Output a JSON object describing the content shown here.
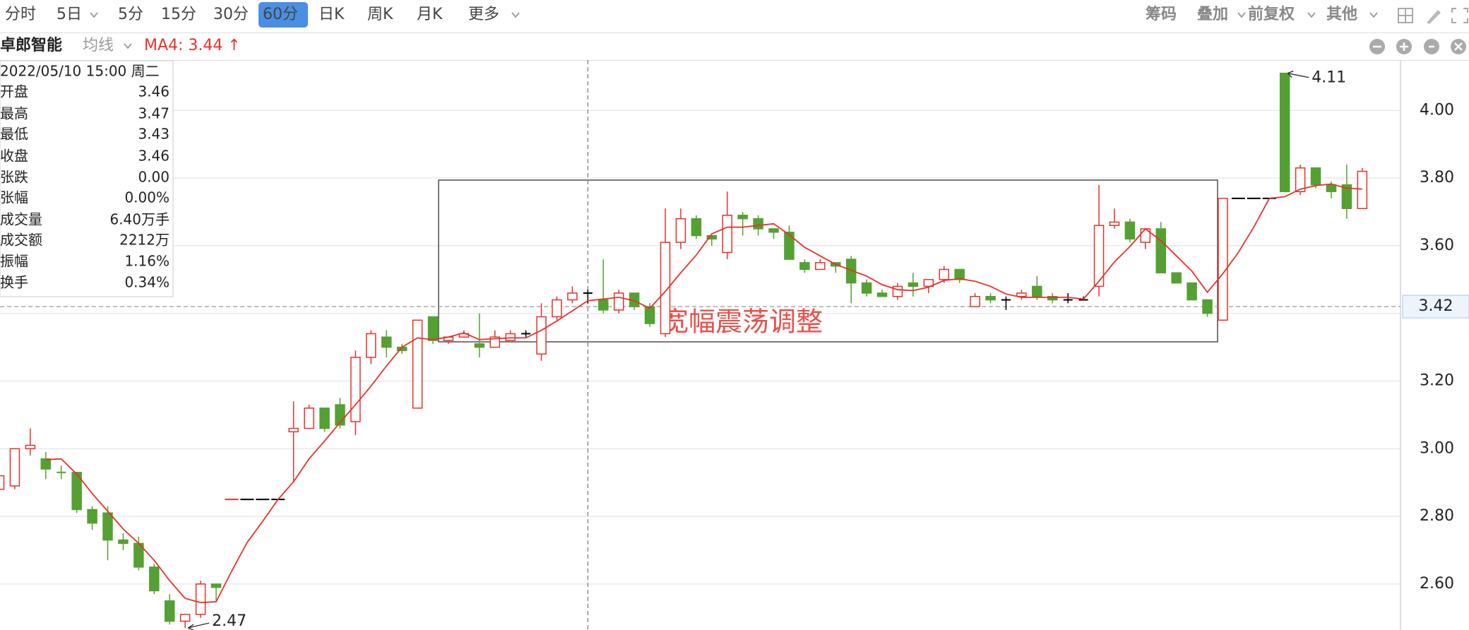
{
  "toolbar": {
    "periods": [
      "分时",
      "5日",
      "5分",
      "15分",
      "30分",
      "60分",
      "日K",
      "周K",
      "月K",
      "更多"
    ],
    "tools": [
      "筹码",
      "叠加",
      "前复权",
      "其他"
    ]
  },
  "chart_data": {
    "type": "candlestick",
    "stock_name": "卓郎智能",
    "indicator": "均线",
    "ma_label": "MA4: 3.44 ↑",
    "open": [
      2.88,
      2.89,
      3.0,
      2.97,
      2.93,
      2.93,
      2.82,
      2.81,
      2.73,
      2.72,
      2.65,
      2.55,
      2.49,
      2.51,
      2.6,
      2.85,
      2.85,
      2.85,
      2.85,
      3.05,
      3.06,
      3.12,
      3.13,
      3.08,
      3.27,
      3.33,
      3.3,
      3.12,
      3.39,
      3.32,
      3.33,
      3.31,
      3.3,
      3.32,
      3.34,
      3.28,
      3.39,
      3.44,
      3.46,
      3.44,
      3.41,
      3.46,
      3.42,
      3.34,
      3.61,
      3.68,
      3.63,
      3.58,
      3.69,
      3.68,
      3.65,
      3.64,
      3.55,
      3.53,
      3.55,
      3.56,
      3.49,
      3.46,
      3.45,
      3.49,
      3.48,
      3.5,
      3.53,
      3.42,
      3.45,
      3.44,
      3.45,
      3.48,
      3.45,
      3.44,
      3.44,
      3.48,
      3.66,
      3.67,
      3.61,
      3.65,
      3.52,
      3.49,
      3.44,
      3.38,
      3.74,
      3.74,
      3.74,
      4.11,
      3.76,
      3.83,
      3.78,
      3.78,
      3.71
    ],
    "high": [
      2.93,
      3.0,
      3.06,
      2.99,
      2.95,
      2.93,
      2.83,
      2.83,
      2.75,
      2.74,
      2.66,
      2.57,
      2.51,
      2.61,
      2.6,
      2.85,
      2.85,
      2.85,
      2.85,
      3.14,
      3.13,
      3.12,
      3.15,
      3.29,
      3.35,
      3.35,
      3.31,
      3.38,
      3.39,
      3.33,
      3.35,
      3.4,
      3.35,
      3.35,
      3.35,
      3.43,
      3.45,
      3.48,
      3.47,
      3.56,
      3.47,
      3.46,
      3.43,
      3.71,
      3.71,
      3.69,
      3.63,
      3.76,
      3.7,
      3.69,
      3.65,
      3.66,
      3.56,
      3.56,
      3.55,
      3.57,
      3.5,
      3.47,
      3.49,
      3.52,
      3.5,
      3.54,
      3.53,
      3.46,
      3.46,
      3.45,
      3.47,
      3.51,
      3.46,
      3.46,
      3.45,
      3.78,
      3.71,
      3.68,
      3.65,
      3.67,
      3.52,
      3.49,
      3.44,
      3.74,
      3.74,
      3.74,
      3.74,
      4.11,
      3.84,
      3.83,
      3.79,
      3.84,
      3.83
    ],
    "low": [
      2.87,
      2.88,
      2.98,
      2.91,
      2.91,
      2.81,
      2.76,
      2.67,
      2.7,
      2.64,
      2.57,
      2.48,
      2.47,
      2.5,
      2.55,
      2.85,
      2.85,
      2.85,
      2.85,
      2.9,
      3.06,
      3.05,
      3.06,
      3.04,
      3.25,
      3.27,
      3.28,
      3.12,
      3.31,
      3.31,
      3.33,
      3.27,
      3.3,
      3.32,
      3.33,
      3.26,
      3.38,
      3.43,
      3.43,
      3.4,
      3.4,
      3.41,
      3.36,
      3.33,
      3.59,
      3.62,
      3.6,
      3.56,
      3.63,
      3.63,
      3.62,
      3.56,
      3.52,
      3.53,
      3.52,
      3.43,
      3.45,
      3.45,
      3.44,
      3.45,
      3.46,
      3.49,
      3.49,
      3.42,
      3.43,
      3.41,
      3.44,
      3.44,
      3.43,
      3.43,
      3.44,
      3.45,
      3.65,
      3.61,
      3.59,
      3.52,
      3.49,
      3.44,
      3.39,
      3.38,
      3.74,
      3.74,
      3.74,
      3.76,
      3.75,
      3.77,
      3.74,
      3.68,
      3.71
    ],
    "close": [
      2.92,
      3.0,
      3.01,
      2.94,
      2.93,
      2.82,
      2.78,
      2.73,
      2.72,
      2.65,
      2.58,
      2.49,
      2.51,
      2.6,
      2.59,
      2.85,
      2.85,
      2.85,
      2.85,
      3.06,
      3.12,
      3.06,
      3.07,
      3.27,
      3.34,
      3.3,
      3.29,
      3.38,
      3.32,
      3.33,
      3.34,
      3.3,
      3.33,
      3.34,
      3.34,
      3.39,
      3.44,
      3.46,
      3.46,
      3.41,
      3.46,
      3.42,
      3.37,
      3.61,
      3.68,
      3.63,
      3.62,
      3.69,
      3.68,
      3.65,
      3.64,
      3.56,
      3.53,
      3.55,
      3.54,
      3.49,
      3.46,
      3.45,
      3.48,
      3.48,
      3.5,
      3.53,
      3.5,
      3.45,
      3.44,
      3.44,
      3.46,
      3.45,
      3.44,
      3.44,
      3.44,
      3.66,
      3.67,
      3.62,
      3.65,
      3.52,
      3.49,
      3.44,
      3.4,
      3.74,
      3.74,
      3.74,
      3.74,
      3.76,
      3.83,
      3.78,
      3.76,
      3.71,
      3.82
    ],
    "ylim": [
      2.464,
      4.149
    ],
    "yticks": [
      {
        "value": 2.6,
        "label": "2.60"
      },
      {
        "value": 2.8,
        "label": "2.80"
      },
      {
        "value": 3.0,
        "label": "3.00"
      },
      {
        "value": 3.2,
        "label": "3.20"
      },
      {
        "value": 3.4,
        "label": "3.40"
      },
      {
        "value": 3.6,
        "label": "3.60"
      },
      {
        "value": 3.8,
        "label": "3.80"
      },
      {
        "value": 4.0,
        "label": "4.00"
      }
    ],
    "grid": true,
    "crosshair_price": 3.42,
    "annotation": "宽幅震荡调整",
    "up_color": "#e8312a",
    "down_color": "#55a032",
    "flat_color": "#000000",
    "ma_color": "#e8312a",
    "info_panel": {
      "date": "2022/05/10 15:00 周二",
      "rows": [
        {
          "label": "开盘"
        },
        {
          "label": "最高"
        },
        {
          "label": "最低"
        },
        {
          "label": "收盘"
        },
        {
          "label": "张跌",
          "value": "0.00"
        },
        {
          "label": "张幅",
          "value": "0.00%"
        },
        {
          "label": "成交量",
          "value": "6.40万手"
        },
        {
          "label": "成交额",
          "value": "2212万"
        },
        {
          "label": "振幅",
          "value": "1.16%"
        },
        {
          "label": "换手",
          "value": "0.34%"
        }
      ]
    }
  }
}
